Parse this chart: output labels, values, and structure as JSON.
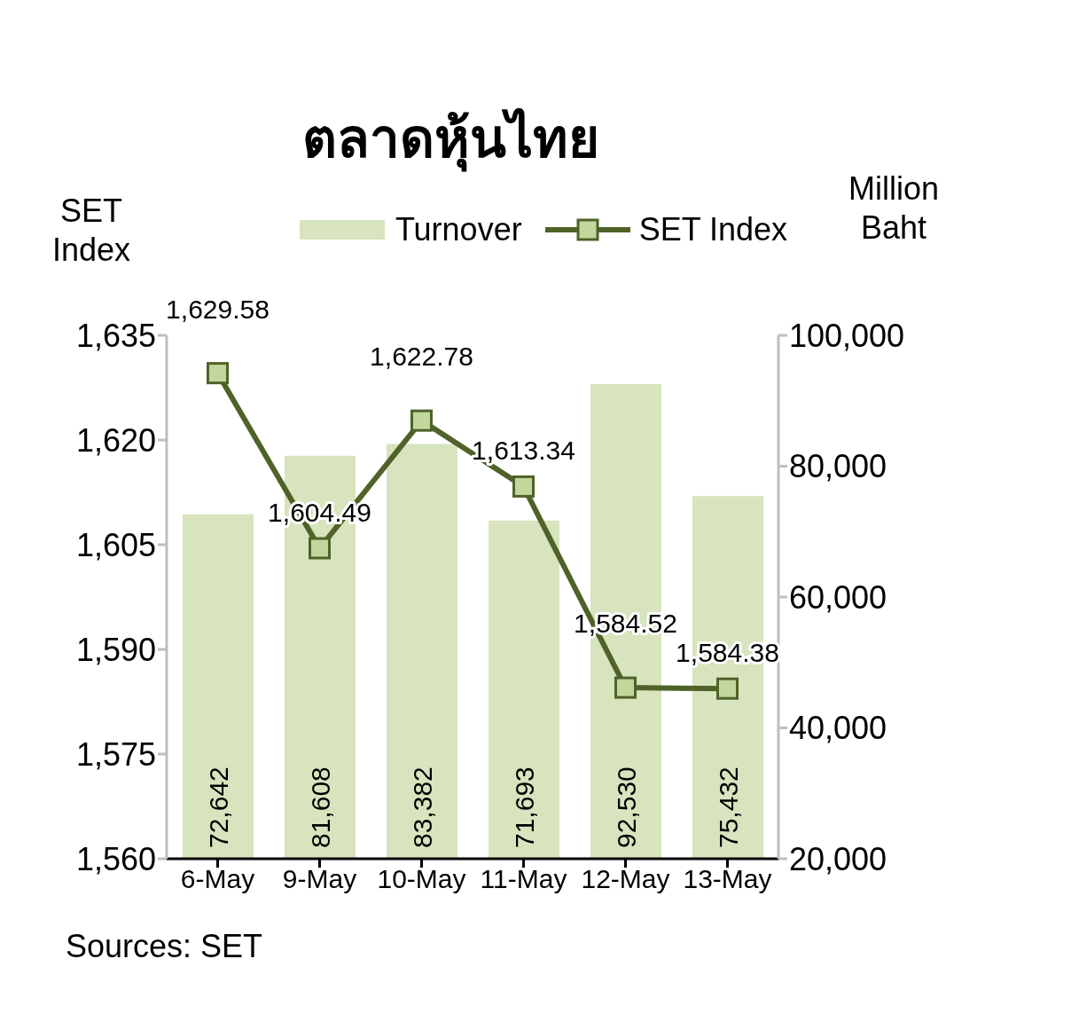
{
  "chart_data": {
    "type": "bar",
    "title": "ตลาดหุ้นไทย",
    "ylabel": "SET Index",
    "y2label": "Million Baht",
    "categories": [
      "6-May",
      "9-May",
      "10-May",
      "11-May",
      "12-May",
      "13-May"
    ],
    "series": [
      {
        "name": "Turnover",
        "axis": "y2",
        "color": "#d7e4bd",
        "values": [
          72642,
          81608,
          83382,
          71693,
          92530,
          75432
        ],
        "value_labels": [
          "72,642",
          "81,608",
          "83,382",
          "71,693",
          "92,530",
          "75,432"
        ]
      },
      {
        "name": "SET Index",
        "axis": "y",
        "type": "line",
        "color": "#4f6228",
        "marker": "square",
        "values": [
          1629.58,
          1604.49,
          1622.78,
          1613.34,
          1584.52,
          1584.38
        ],
        "value_labels": [
          "1,629.58",
          "1,604.49",
          "1,622.78",
          "1,613.34",
          "1,584.52",
          "1,584.38"
        ]
      }
    ],
    "ylim": [
      1560,
      1635
    ],
    "yticks": [
      {
        "value": 1560,
        "label": "1,560"
      },
      {
        "value": 1575,
        "label": "1,575"
      },
      {
        "value": 1590,
        "label": "1,590"
      },
      {
        "value": 1605,
        "label": "1,605"
      },
      {
        "value": 1620,
        "label": "1,620"
      },
      {
        "value": 1635,
        "label": "1,635"
      }
    ],
    "y2lim": [
      20000,
      100000
    ],
    "y2ticks": [
      {
        "value": 20000,
        "label": "20,000"
      },
      {
        "value": 40000,
        "label": "40,000"
      },
      {
        "value": 60000,
        "label": "60,000"
      },
      {
        "value": 80000,
        "label": "80,000"
      },
      {
        "value": 100000,
        "label": "100,000"
      }
    ],
    "legend": "top",
    "annotations": [
      "Sources: SET"
    ]
  }
}
